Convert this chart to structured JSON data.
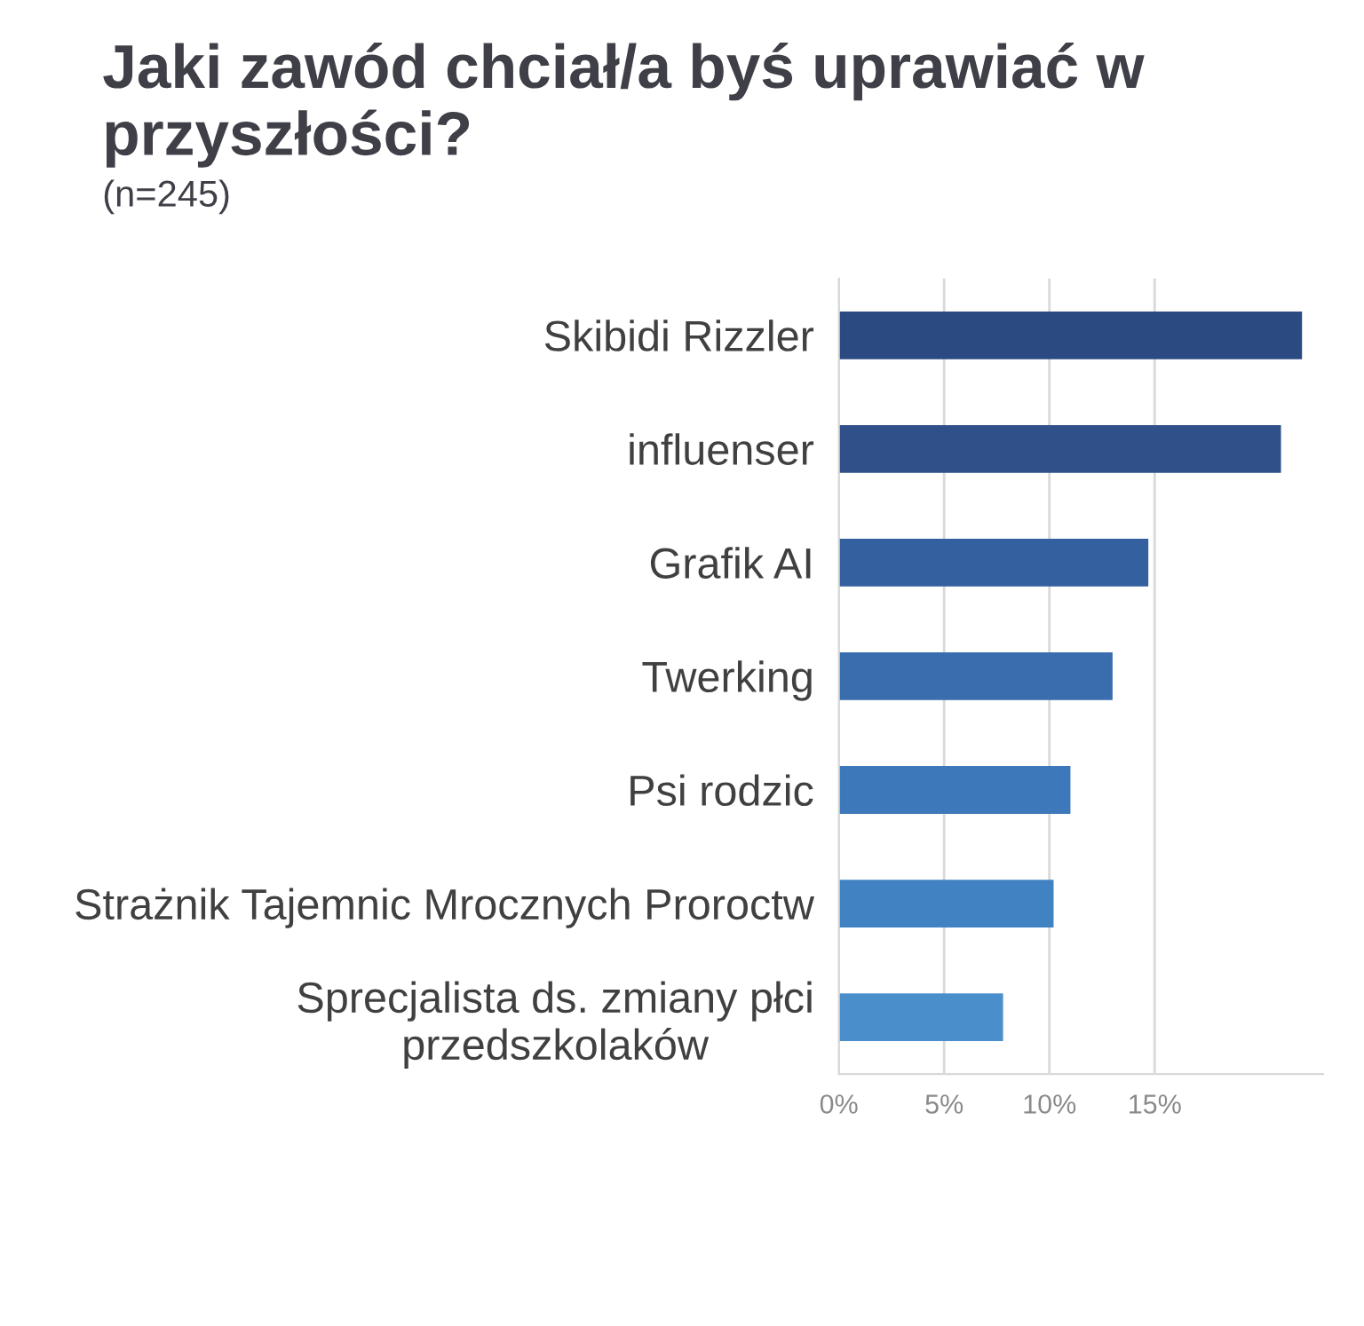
{
  "chart_data": {
    "type": "bar",
    "orientation": "horizontal",
    "title": "Jaki zawód chciał/a byś uprawiać w przyszłości?",
    "subtitle": "(n=245)",
    "categories": [
      "Skibidi Rizzler",
      "influenser",
      "Grafik AI",
      "Twerking",
      "Psi rodzic",
      "Strażnik Tajemnic Mrocznych Proroctw",
      "Sprecjalista ds. zmiany płci przedszkolaków"
    ],
    "values": [
      22,
      21,
      14.7,
      13.0,
      11.0,
      10.2,
      7.8
    ],
    "colors": [
      "#2c4a82",
      "#2f5089",
      "#34609f",
      "#396dad",
      "#3d79ba",
      "#4182c2",
      "#4a8fcb"
    ],
    "xlim": [
      0,
      23
    ],
    "xticks": [
      {
        "value": 0,
        "label": "0%"
      },
      {
        "value": 5,
        "label": "5%"
      },
      {
        "value": 10,
        "label": "10%"
      },
      {
        "value": 15,
        "label": "15%"
      }
    ],
    "grid": "x"
  }
}
